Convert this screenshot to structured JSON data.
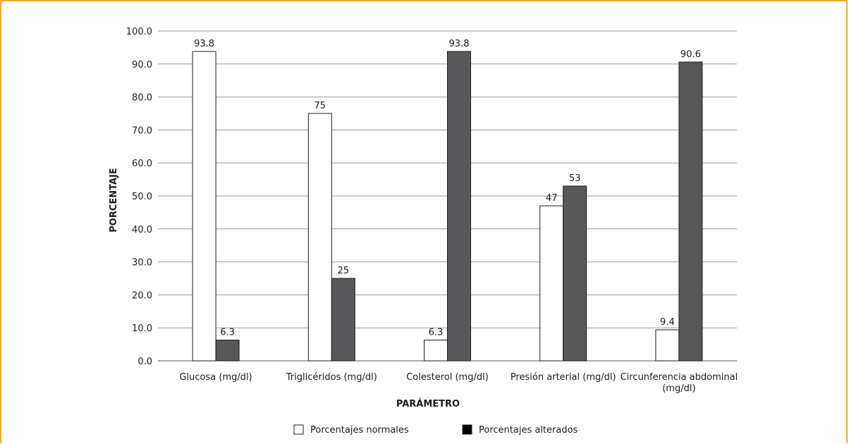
{
  "chart_data": {
    "type": "bar",
    "categories": [
      [
        "Glucosa (mg/dl)"
      ],
      [
        "Triglicéridos (mg/dl)"
      ],
      [
        "Colesterol (mg/dl)"
      ],
      [
        "Presión arterial (mg/dl)"
      ],
      [
        "Circunferencia abdominal",
        "(mg/dl)"
      ]
    ],
    "series": [
      {
        "name": "Porcentajes normales",
        "values": [
          93.8,
          75,
          6.3,
          47,
          9.4
        ],
        "labels": [
          "93.8",
          "75",
          "6.3",
          "47",
          "9.4"
        ],
        "color": "#ffffff"
      },
      {
        "name": "Porcentajes alterados",
        "values": [
          6.3,
          25,
          93.8,
          53,
          90.6
        ],
        "labels": [
          "6.3",
          "25",
          "93.8",
          "53",
          "90.6"
        ],
        "color": "#58585a"
      }
    ],
    "xlabel": "PARÁMETRO",
    "ylabel": "PORCENTAJE",
    "ylim": [
      0,
      100
    ],
    "yticks": [
      "0.0",
      "10.0",
      "20.0",
      "30.0",
      "40.0",
      "50.0",
      "60.0",
      "70.0",
      "80.0",
      "90.0",
      "100.0"
    ],
    "grid": true,
    "legend_position": "bottom"
  },
  "colors": {
    "frame": "#f0a937",
    "grid": "#9a9a9a",
    "bar_outline": "#1a1a1a"
  }
}
